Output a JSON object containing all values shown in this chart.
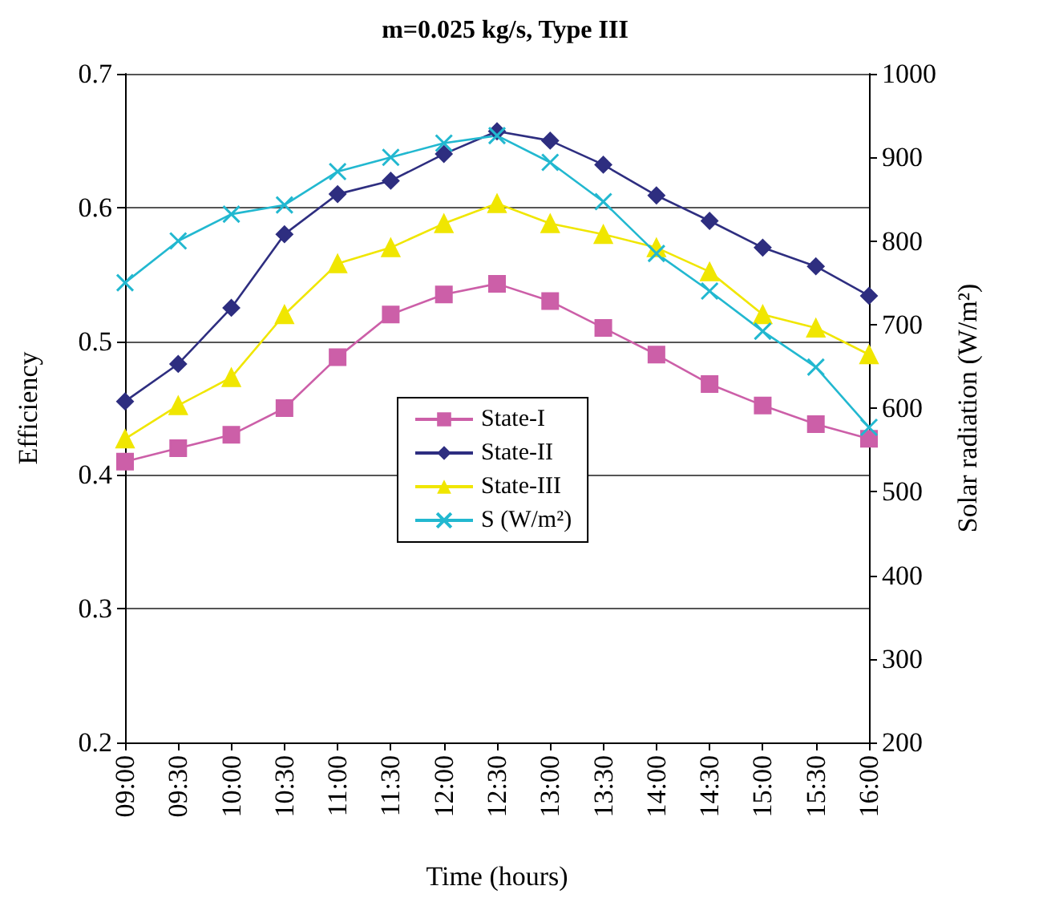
{
  "chart_data": {
    "type": "line",
    "title": "m=0.025 kg/s, Type III",
    "xlabel": "Time (hours)",
    "ylabel": "Efficiency",
    "y2label": "Solar radiation (W/m²)",
    "categories": [
      "09:00",
      "09:30",
      "10:00",
      "10:30",
      "11:00",
      "11:30",
      "12:00",
      "12:30",
      "13:00",
      "13:30",
      "14:00",
      "14:30",
      "15:00",
      "15:30",
      "16:00"
    ],
    "series": [
      {
        "name": "State-I",
        "color": "#cc5fa8",
        "marker": "square",
        "values": [
          0.41,
          0.42,
          0.43,
          0.45,
          0.488,
          0.52,
          0.535,
          0.543,
          0.53,
          0.51,
          0.49,
          0.468,
          0.452,
          0.438,
          0.427
        ]
      },
      {
        "name": "State-II",
        "color": "#2e2e80",
        "marker": "diamond",
        "values": [
          0.455,
          0.483,
          0.525,
          0.58,
          0.61,
          0.62,
          0.64,
          0.657,
          0.65,
          0.632,
          0.609,
          0.59,
          0.57,
          0.556,
          0.534
        ]
      },
      {
        "name": "State-III",
        "color": "#f0e600",
        "marker": "triangle",
        "values": [
          0.427,
          0.452,
          0.473,
          0.52,
          0.558,
          0.57,
          0.588,
          0.603,
          0.588,
          0.58,
          0.57,
          0.552,
          0.52,
          0.51,
          0.49
        ]
      },
      {
        "name": "S (W/m²)",
        "color": "#22b8d0",
        "marker": "cross",
        "axis": "y2",
        "values": [
          750,
          800,
          832,
          843,
          883,
          900,
          917,
          926,
          894,
          847,
          785,
          740,
          692,
          649,
          577
        ]
      }
    ],
    "ylim": [
      0.2,
      0.7
    ],
    "yticks": [
      0.2,
      0.3,
      0.4,
      0.5,
      0.6,
      0.7
    ],
    "y2lim": [
      200,
      1000
    ],
    "y2ticks": [
      200,
      300,
      400,
      500,
      600,
      700,
      800,
      900,
      1000
    ],
    "grid": "y",
    "legend": "bottom",
    "line_style": "solid"
  }
}
